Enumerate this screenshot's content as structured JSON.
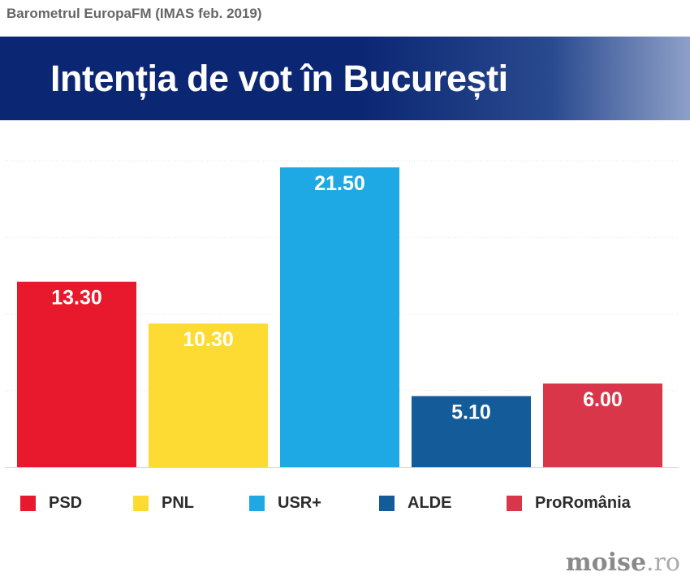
{
  "header": {
    "source_title": "Barometrul EuropaFM (IMAS feb. 2019)",
    "banner_title": "Intenția de vot în București"
  },
  "chart_data": {
    "type": "bar",
    "title": "Intenția de vot în București",
    "categories": [
      "PSD",
      "PNL",
      "USR+",
      "ALDE",
      "ProRomânia"
    ],
    "values": [
      13.3,
      10.3,
      21.5,
      5.1,
      6.0
    ],
    "value_labels": [
      "13.30",
      "10.30",
      "21.50",
      "5.10",
      "6.00"
    ],
    "colors": [
      "#e8192c",
      "#fddb32",
      "#1ea9e4",
      "#135b99",
      "#d9364a"
    ],
    "xlabel": "",
    "ylabel": "",
    "ylim": [
      0,
      22
    ],
    "grid": true,
    "legend": "bottom"
  },
  "legend": {
    "items": [
      {
        "label": "PSD",
        "color": "#e8192c"
      },
      {
        "label": "PNL",
        "color": "#fddb32"
      },
      {
        "label": "USR+",
        "color": "#1ea9e4"
      },
      {
        "label": "ALDE",
        "color": "#135b99"
      },
      {
        "label": "ProRomânia",
        "color": "#d9364a"
      }
    ]
  },
  "watermark": {
    "brand": "moise",
    "dot": ".",
    "tld": "ro"
  }
}
